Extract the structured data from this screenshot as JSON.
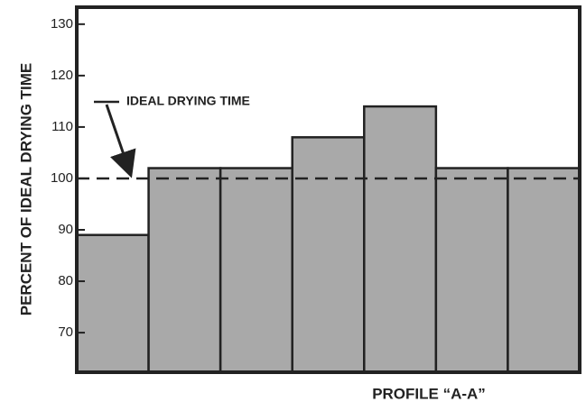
{
  "chart_data": {
    "type": "bar",
    "x_label": "PROFILE “A-A”",
    "y_label": "PERCENT OF IDEAL DRYING TIME",
    "categories": [
      null,
      null,
      null,
      null,
      null,
      null,
      null
    ],
    "values": [
      89,
      102,
      102,
      108,
      114,
      102,
      102
    ],
    "color": "#a9a9a9",
    "ylim": [
      62.3,
      133.3
    ],
    "yticks": [
      70,
      80,
      90,
      100,
      110,
      120,
      130
    ],
    "reference_line": {
      "value": 100,
      "label": "IDEAL DRYING TIME"
    }
  }
}
